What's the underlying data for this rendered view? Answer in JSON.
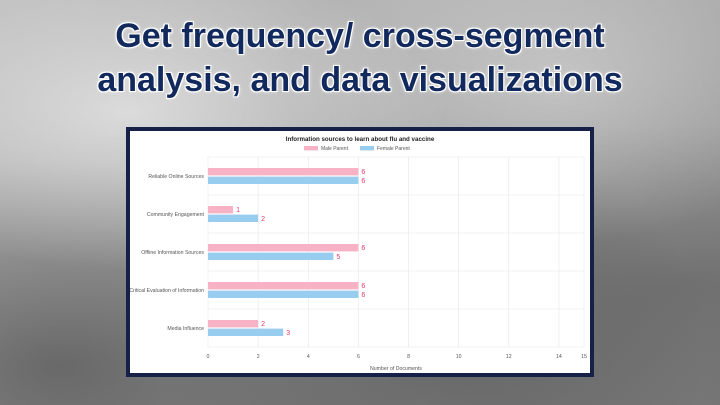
{
  "slide": {
    "title_line1": "Get frequency/ cross-segment",
    "title_line2": "analysis, and data visualizations"
  },
  "chart_data": {
    "type": "bar",
    "orientation": "horizontal",
    "title": "Information sources to learn about flu and vaccine",
    "categories": [
      "Reliable Online Sources",
      "Community Engagement",
      "Offline Information Sources",
      "Critical Evaluation of Information",
      "Media Influence"
    ],
    "series": [
      {
        "name": "Male Parent",
        "values": [
          6,
          1,
          6,
          6,
          2
        ],
        "color": "#f8b2c6"
      },
      {
        "name": "Female Parent",
        "values": [
          6,
          2,
          5,
          6,
          3
        ],
        "color": "#99cdf0"
      }
    ],
    "xlabel": "Number of Documents",
    "ylabel": "",
    "xlim": [
      0,
      15
    ],
    "x_ticks": [
      0,
      2,
      4,
      6,
      8,
      10,
      12,
      14,
      15
    ],
    "x_tick_labels": [
      "0",
      "2",
      "4",
      "6",
      "8",
      "10",
      "12",
      "14",
      "15"
    ],
    "grid": true,
    "legend_position": "top-center",
    "data_label_color": "#e0386a"
  }
}
